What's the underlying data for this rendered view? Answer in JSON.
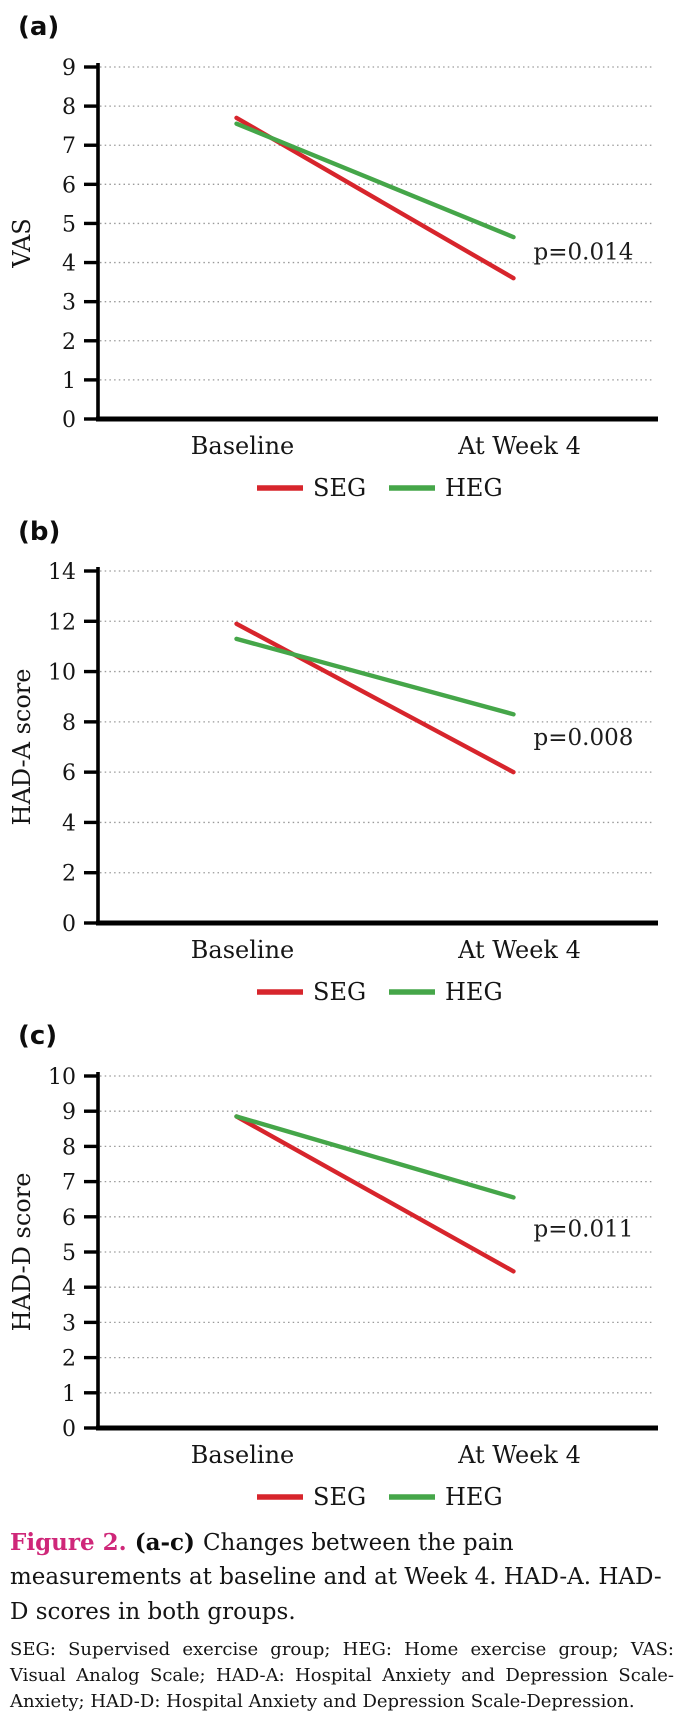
{
  "colors": {
    "seg_red": "#d7252c",
    "heg_green": "#45a649",
    "caption_accent": "#cf2779",
    "gridline_gray": "#9a9a9a",
    "axis_black": "#000000"
  },
  "chart_data": [
    {
      "type": "line",
      "panel_label": "(a)",
      "ylabel": "VAS",
      "xlabel": "",
      "categories": [
        "Baseline",
        "At Week 4"
      ],
      "series": [
        {
          "name": "SEG",
          "color": "#d7252c",
          "values": [
            7.7,
            3.6
          ]
        },
        {
          "name": "HEG",
          "color": "#45a649",
          "values": [
            7.55,
            4.65
          ]
        }
      ],
      "annotation": "p=0.014",
      "ylim": [
        0,
        9
      ],
      "ytick_step": 1,
      "grid": "horizontal-dotted",
      "legend_position": "bottom-center"
    },
    {
      "type": "line",
      "panel_label": "(b)",
      "ylabel": "HAD-A score",
      "xlabel": "",
      "categories": [
        "Baseline",
        "At Week 4"
      ],
      "series": [
        {
          "name": "SEG",
          "color": "#d7252c",
          "values": [
            11.9,
            6.0
          ]
        },
        {
          "name": "HEG",
          "color": "#45a649",
          "values": [
            11.3,
            8.3
          ]
        }
      ],
      "annotation": "p=0.008",
      "ylim": [
        0,
        14
      ],
      "ytick_step": 2,
      "grid": "horizontal-dotted",
      "legend_position": "bottom-center"
    },
    {
      "type": "line",
      "panel_label": "(c)",
      "ylabel": "HAD-D score",
      "xlabel": "",
      "categories": [
        "Baseline",
        "At Week 4"
      ],
      "series": [
        {
          "name": "SEG",
          "color": "#d7252c",
          "values": [
            8.85,
            4.45
          ]
        },
        {
          "name": "HEG",
          "color": "#45a649",
          "values": [
            8.85,
            6.55
          ]
        }
      ],
      "annotation": "p=0.011",
      "ylim": [
        0,
        10
      ],
      "ytick_step": 1,
      "grid": "horizontal-dotted",
      "legend_position": "bottom-center"
    }
  ],
  "caption": {
    "figure_label": "Figure 2.",
    "range_label": "(a-c)",
    "text": "Changes between the pain measurements at baseline and at Week 4. HAD-A. HAD-D scores in both groups."
  },
  "footnote": "SEG: Supervised exercise group; HEG: Home exercise group; VAS: Visual Analog Scale; HAD-A: Hospital Anxiety and Depression Scale-Anxiety; HAD-D: Hospital Anxiety and Depression Scale-Depression."
}
